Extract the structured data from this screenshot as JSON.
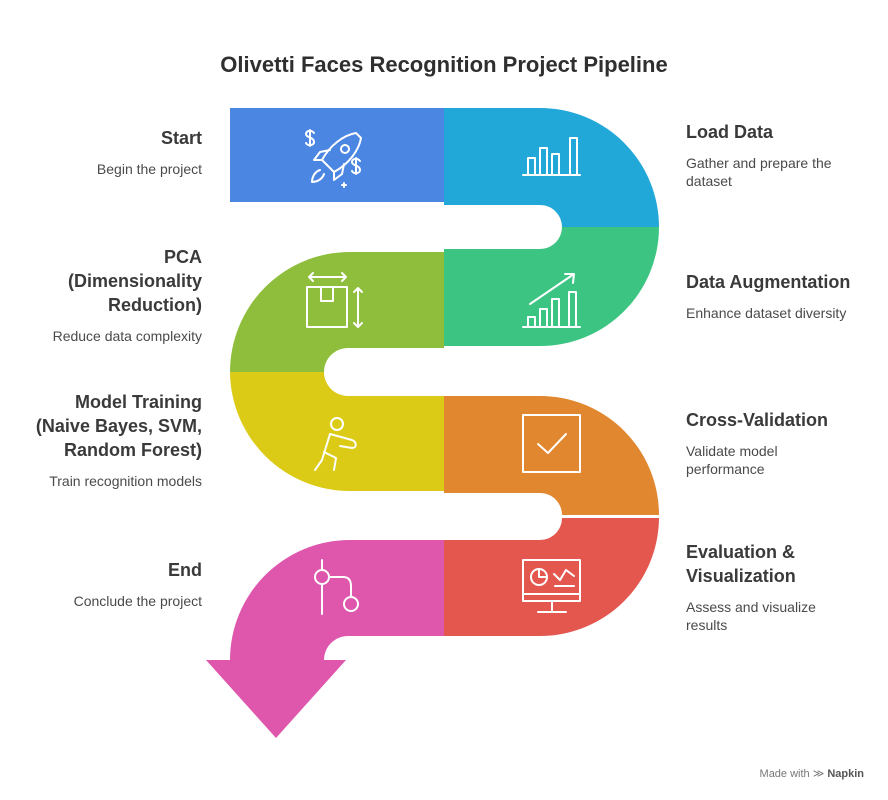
{
  "title": "Olivetti Faces Recognition Project Pipeline",
  "steps": [
    {
      "heading": "Start",
      "desc": "Begin the project",
      "icon": "rocket-icon",
      "color": "#4C86E3"
    },
    {
      "heading": "Load Data",
      "desc": "Gather and prepare the\ndataset",
      "icon": "bar-chart-icon",
      "color": "#22A8D8"
    },
    {
      "heading": "Data Augmentation",
      "desc": "Enhance dataset diversity",
      "icon": "growth-chart-icon",
      "color": "#3CC582"
    },
    {
      "heading": "PCA\n(Dimensionality\nReduction)",
      "desc": "Reduce data complexity",
      "icon": "box-resize-icon",
      "color": "#8FBE3D"
    },
    {
      "heading": "Model Training\n(Naive Bayes, SVM,\nRandom Forest)",
      "desc": "Train recognition models",
      "icon": "training-figure-icon",
      "color": "#DCCB16"
    },
    {
      "heading": "Cross-Validation",
      "desc": "Validate model\nperformance",
      "icon": "checkbox-icon",
      "color": "#E0872F"
    },
    {
      "heading": "Evaluation &\nVisualization",
      "desc": "Assess and visualize\nresults",
      "icon": "monitor-chart-icon",
      "color": "#E3574F"
    },
    {
      "heading": "End",
      "desc": "Conclude the project",
      "icon": "flow-nodes-icon",
      "color": "#DE57AC"
    }
  ],
  "footer": {
    "made_with": "Made with",
    "brand": "Napkin"
  }
}
